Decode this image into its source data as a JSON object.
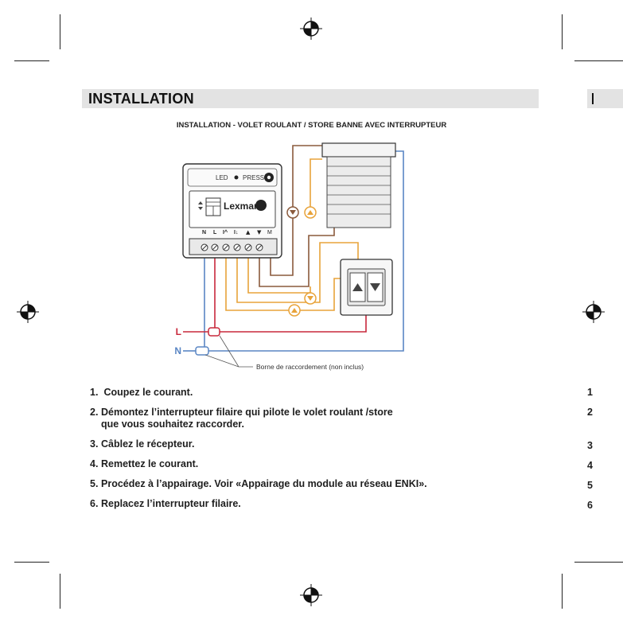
{
  "section": {
    "title": "INSTALLATION"
  },
  "diagram": {
    "title": "INSTALLATION - VOLET ROULANT / STORE BANNE AVEC INTERRUPTEUR",
    "led_label": "LED",
    "press_label": "PRESS",
    "brand": "Lexman",
    "terminals": [
      "N",
      "L",
      "I^",
      "I↓",
      "▲",
      "▼",
      "M"
    ],
    "line_label": "L",
    "neutral_label": "N",
    "connector_note": "Borne de raccordement (non inclus)",
    "colors": {
      "brown": "#8a5a3c",
      "orange": "#e8a33a",
      "red": "#c8283c",
      "blue": "#5a86c4"
    }
  },
  "steps": [
    {
      "num": "1.",
      "text": "Coupez le courant."
    },
    {
      "num": "2.",
      "text": "Démontez l’interrupteur filaire qui pilote le volet roulant /store",
      "text2": "que vous souhaitez raccorder."
    },
    {
      "num": "3.",
      "text": "Câblez le récepteur."
    },
    {
      "num": "4.",
      "text": "Remettez le courant."
    },
    {
      "num": "5.",
      "text": "Procédez à l’appairage. Voir «Appairage du module au réseau ENKI»."
    },
    {
      "num": "6.",
      "text": "Replacez l’interrupteur filaire."
    }
  ],
  "right_page_fragments": [
    "1",
    "2",
    "3",
    "4",
    "5",
    "6"
  ]
}
